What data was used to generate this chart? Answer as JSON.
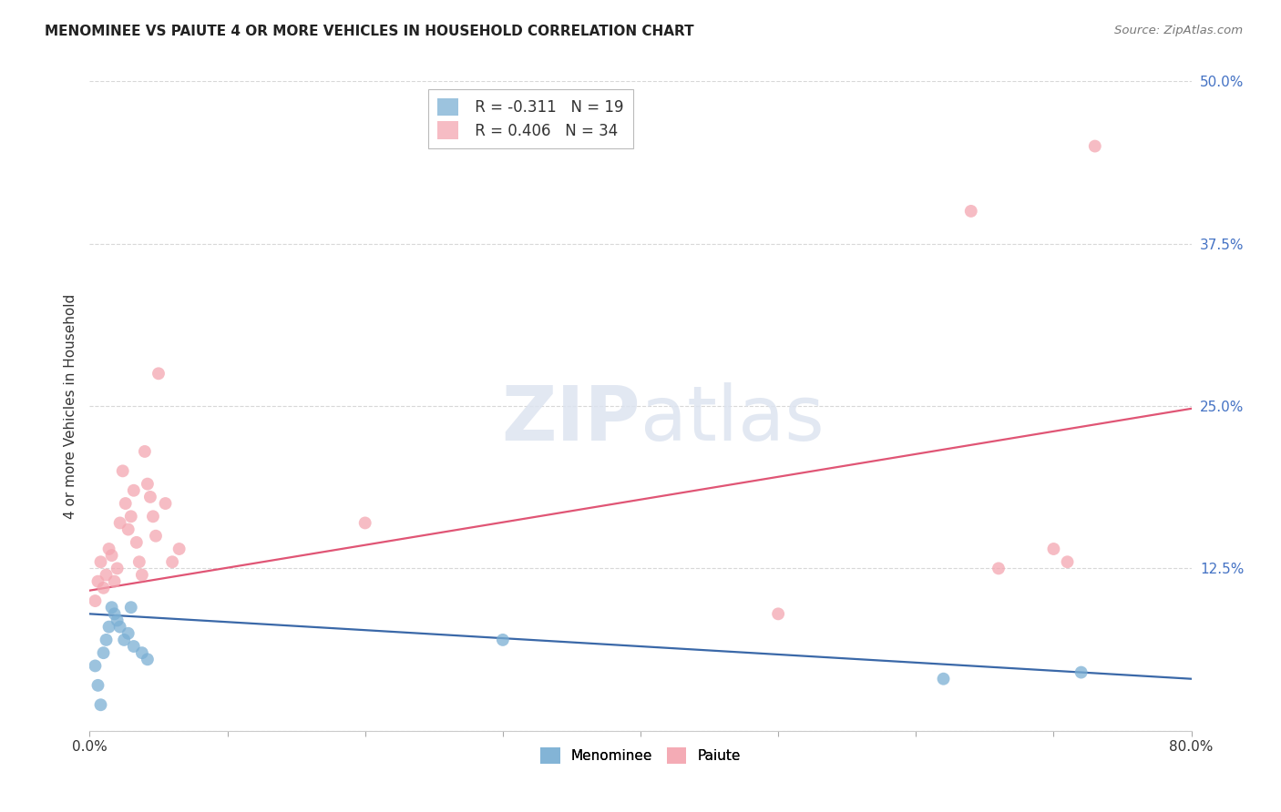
{
  "title": "MENOMINEE VS PAIUTE 4 OR MORE VEHICLES IN HOUSEHOLD CORRELATION CHART",
  "source": "Source: ZipAtlas.com",
  "ylabel": "4 or more Vehicles in Household",
  "xlim": [
    0.0,
    0.8
  ],
  "ylim": [
    0.0,
    0.5
  ],
  "xticks": [
    0.0,
    0.1,
    0.2,
    0.3,
    0.4,
    0.5,
    0.6,
    0.7,
    0.8
  ],
  "yticks": [
    0.0,
    0.125,
    0.25,
    0.375,
    0.5
  ],
  "background_color": "#ffffff",
  "grid_color": "#d8d8d8",
  "menominee_color": "#7bafd4",
  "paiute_color": "#f4a6b0",
  "menominee_line_color": "#3a68a8",
  "paiute_line_color": "#e05575",
  "menominee_R": -0.311,
  "menominee_N": 19,
  "paiute_R": 0.406,
  "paiute_N": 34,
  "legend_R_color": "#cc0000",
  "legend_N_color": "#2255cc",
  "menominee_x": [
    0.004,
    0.006,
    0.008,
    0.01,
    0.012,
    0.014,
    0.016,
    0.018,
    0.02,
    0.022,
    0.025,
    0.028,
    0.03,
    0.032,
    0.038,
    0.042,
    0.3,
    0.62,
    0.72
  ],
  "menominee_y": [
    0.05,
    0.035,
    0.02,
    0.06,
    0.07,
    0.08,
    0.095,
    0.09,
    0.085,
    0.08,
    0.07,
    0.075,
    0.095,
    0.065,
    0.06,
    0.055,
    0.07,
    0.04,
    0.045
  ],
  "paiute_x": [
    0.004,
    0.006,
    0.008,
    0.01,
    0.012,
    0.014,
    0.016,
    0.018,
    0.02,
    0.022,
    0.024,
    0.026,
    0.028,
    0.03,
    0.032,
    0.034,
    0.036,
    0.038,
    0.04,
    0.042,
    0.044,
    0.046,
    0.048,
    0.05,
    0.055,
    0.06,
    0.065,
    0.2,
    0.5,
    0.64,
    0.66,
    0.7,
    0.71,
    0.73
  ],
  "paiute_y": [
    0.1,
    0.115,
    0.13,
    0.11,
    0.12,
    0.14,
    0.135,
    0.115,
    0.125,
    0.16,
    0.2,
    0.175,
    0.155,
    0.165,
    0.185,
    0.145,
    0.13,
    0.12,
    0.215,
    0.19,
    0.18,
    0.165,
    0.15,
    0.275,
    0.175,
    0.13,
    0.14,
    0.16,
    0.09,
    0.4,
    0.125,
    0.14,
    0.13,
    0.45
  ],
  "menominee_trendline_x0": 0.0,
  "menominee_trendline_y0": 0.09,
  "menominee_trendline_x1": 0.8,
  "menominee_trendline_y1": 0.04,
  "paiute_trendline_x0": 0.0,
  "paiute_trendline_y0": 0.108,
  "paiute_trendline_x1": 0.8,
  "paiute_trendline_y1": 0.248
}
